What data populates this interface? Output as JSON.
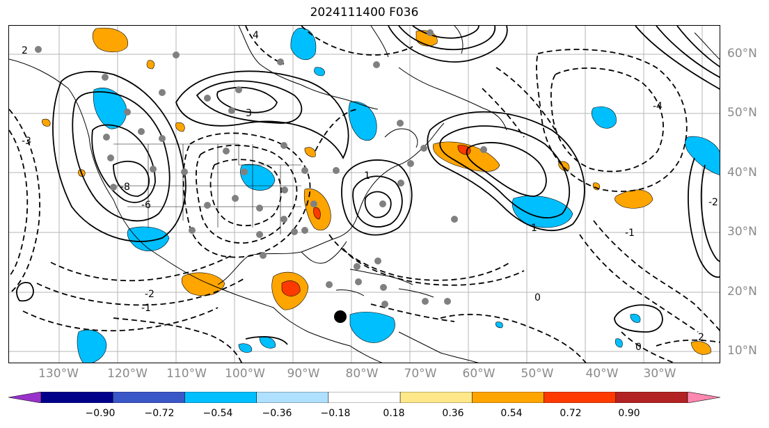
{
  "title": "2024111400 F036",
  "lon_labels": [
    "130°W",
    "120°W",
    "110°W",
    "100°W",
    "90°W",
    "80°W",
    "70°W",
    "60°W",
    "50°W",
    "40°W",
    "30°W"
  ],
  "lat_labels": [
    "60°N",
    "50°N",
    "40°N",
    "30°N",
    "20°N",
    "10°N"
  ],
  "contour_labels": [
    "4",
    "3",
    "2",
    "1",
    "0",
    "-1",
    "-2",
    "-3",
    "-4",
    "-6",
    "-8",
    "2",
    "1",
    "0",
    "-1",
    "-2"
  ],
  "colorbar": {
    "ticks": [
      "−0.90",
      "−0.72",
      "−0.54",
      "−0.36",
      "−0.18",
      "0.18",
      "0.36",
      "0.54",
      "0.72",
      "0.90"
    ],
    "colors": [
      "#9932cc",
      "#00008b",
      "#3a57c8",
      "#00bfff",
      "#b0e0ff",
      "#ffffff",
      "#ffe88a",
      "#ffa500",
      "#ff3a00",
      "#b22222",
      "#ff88b0"
    ]
  },
  "marker": {
    "label": "selected point",
    "lon": "85°W",
    "lat": "16°N"
  }
}
